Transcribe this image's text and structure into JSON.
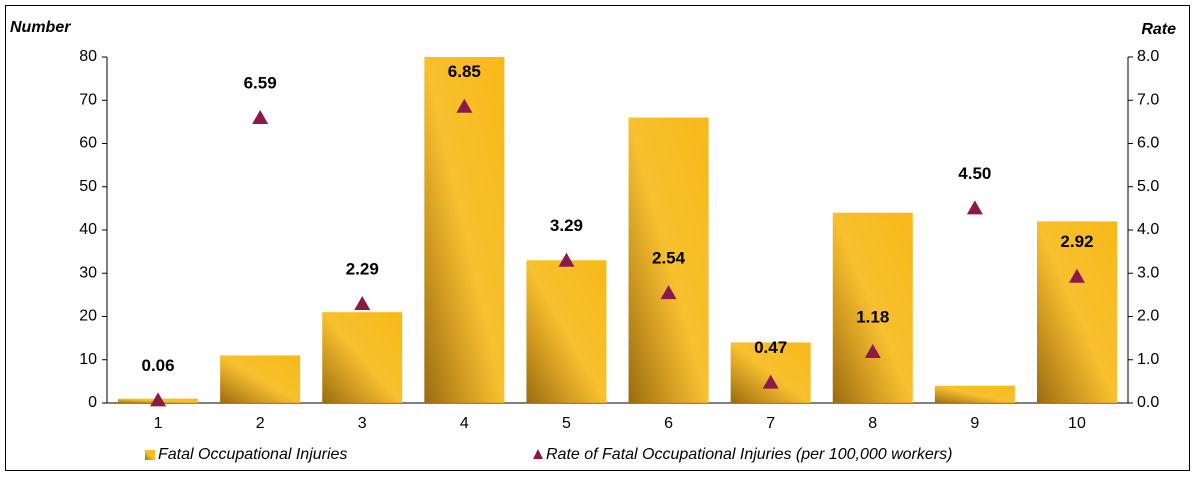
{
  "chart_data": {
    "type": "bar",
    "y_label": "Number",
    "y2_label": "Rate",
    "categories": [
      "1",
      "2",
      "3",
      "4",
      "5",
      "6",
      "7",
      "8",
      "9",
      "10"
    ],
    "series": [
      {
        "name": "Fatal Occupational Injuries",
        "type": "bar",
        "color": "#f7b918",
        "values": [
          1,
          11,
          21,
          80,
          33,
          66,
          14,
          44,
          4,
          42
        ]
      },
      {
        "name": "Rate of Fatal Occupational Injuries (per 100,000 workers)",
        "type": "scatter",
        "axis": "y2",
        "color": "#8b1a4a",
        "values": [
          0.06,
          6.59,
          2.29,
          6.85,
          3.29,
          2.54,
          0.47,
          1.18,
          4.5,
          2.92
        ],
        "value_labels": [
          "0.06",
          "6.59",
          "2.29",
          "6.85",
          "3.29",
          "2.54",
          "0.47",
          "1.18",
          "4.50",
          "2.92"
        ]
      }
    ],
    "ylim": [
      0,
      80
    ],
    "yticks": [
      0,
      10,
      20,
      30,
      40,
      50,
      60,
      70,
      80
    ],
    "y2lim": [
      0,
      8
    ],
    "y2ticks": [
      {
        "value": 0,
        "label": "0.0"
      },
      {
        "value": 1,
        "label": "1.0"
      },
      {
        "value": 2,
        "label": "2.0"
      },
      {
        "value": 3,
        "label": "3.0"
      },
      {
        "value": 4,
        "label": "4.0"
      },
      {
        "value": 5,
        "label": "5.0"
      },
      {
        "value": 6,
        "label": "6.0"
      },
      {
        "value": 7,
        "label": "7.0"
      },
      {
        "value": 8,
        "label": "8.0"
      }
    ],
    "legend": "bottom"
  }
}
